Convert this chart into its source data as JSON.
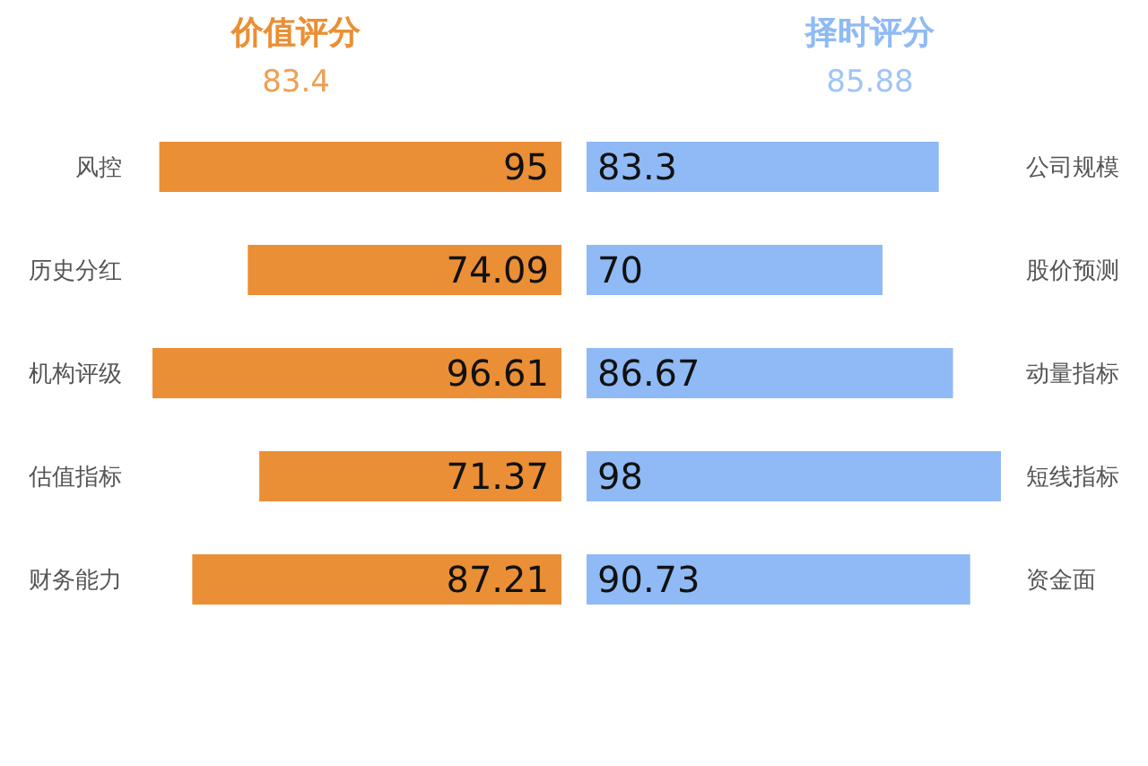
{
  "chart_data": [
    {
      "type": "bar",
      "orientation": "horizontal",
      "title": "价值评分",
      "subtitle": "83.4",
      "categories": [
        "风控",
        "历史分红",
        "机构评级",
        "估值指标",
        "财务能力"
      ],
      "values": [
        95,
        74.09,
        96.61,
        71.37,
        87.21
      ],
      "color": "#ea8f35",
      "data_labels": true,
      "tick_labels": "y"
    },
    {
      "type": "bar",
      "orientation": "horizontal",
      "title": "择时评分",
      "subtitle": "85.88",
      "categories": [
        "公司规模",
        "股价预测",
        "动量指标",
        "短线指标",
        "资金面"
      ],
      "values": [
        83.3,
        70,
        86.67,
        98,
        90.73
      ],
      "color": "#8fbaf5",
      "data_labels": true,
      "tick_labels": "y"
    }
  ]
}
